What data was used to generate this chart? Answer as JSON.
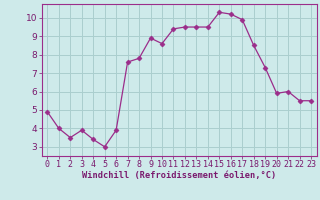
{
  "x": [
    0,
    1,
    2,
    3,
    4,
    5,
    6,
    7,
    8,
    9,
    10,
    11,
    12,
    13,
    14,
    15,
    16,
    17,
    18,
    19,
    20,
    21,
    22,
    23
  ],
  "y": [
    4.9,
    4.0,
    3.5,
    3.9,
    3.4,
    3.0,
    3.9,
    7.6,
    7.8,
    8.9,
    8.6,
    9.4,
    9.5,
    9.5,
    9.5,
    10.3,
    10.2,
    9.9,
    8.5,
    7.3,
    5.9,
    6.0,
    5.5,
    5.5
  ],
  "line_color": "#9b2d8a",
  "marker": "D",
  "marker_size": 2.5,
  "bg_color": "#ceeaea",
  "grid_color": "#aacece",
  "xlabel": "Windchill (Refroidissement éolien,°C)",
  "xlabel_color": "#7a1a6e",
  "tick_color": "#7a1a6e",
  "xlim": [
    -0.5,
    23.5
  ],
  "ylim": [
    2.5,
    10.75
  ],
  "yticks": [
    3,
    4,
    5,
    6,
    7,
    8,
    9,
    10
  ],
  "xticks": [
    0,
    1,
    2,
    3,
    4,
    5,
    6,
    7,
    8,
    9,
    10,
    11,
    12,
    13,
    14,
    15,
    16,
    17,
    18,
    19,
    20,
    21,
    22,
    23
  ],
  "spine_color": "#9b2d8a",
  "tick_fontsize": 6.0,
  "xlabel_fontsize": 6.2
}
